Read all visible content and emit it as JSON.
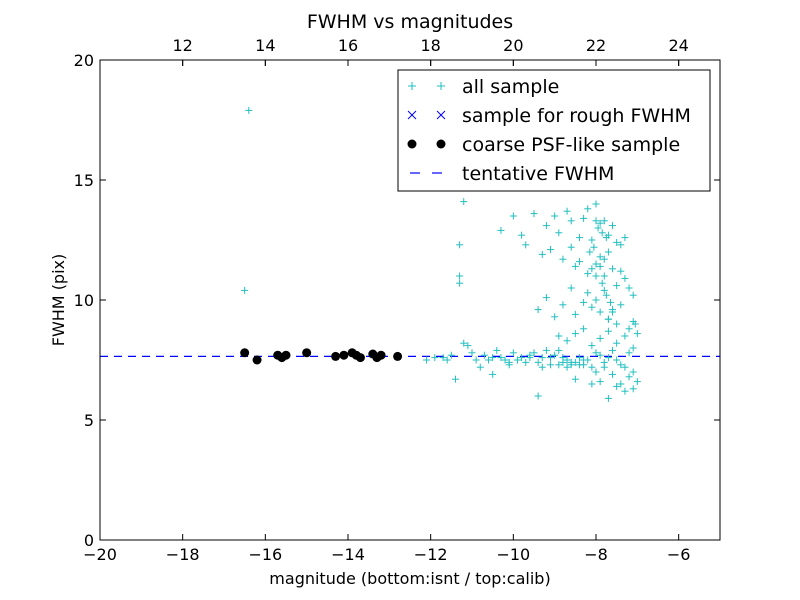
{
  "chart_data": {
    "type": "scatter",
    "title": "FWHM vs magnitudes",
    "xlabel": "magnitude (bottom:isnt / top:calib)",
    "ylabel": "FWHM (pix)",
    "xlim": [
      -20,
      -5
    ],
    "ylim": [
      0,
      20
    ],
    "x_ticks": [
      -20,
      -18,
      -16,
      -14,
      -12,
      -10,
      -8,
      -6
    ],
    "x_tick_labels": [
      "−20",
      "−18",
      "−16",
      "−14",
      "−12",
      "−10",
      "−8",
      "−6"
    ],
    "y_ticks": [
      0,
      5,
      10,
      15,
      20
    ],
    "y_tick_labels": [
      "0",
      "5",
      "10",
      "15",
      "20"
    ],
    "top_axis": {
      "offset": 30.0,
      "ticks": [
        12,
        14,
        16,
        18,
        20,
        22,
        24
      ],
      "tick_labels": [
        "12",
        "14",
        "16",
        "18",
        "20",
        "22",
        "24"
      ]
    },
    "grid": false,
    "legend_position": "top-right",
    "colors": {
      "all_sample": "#22bfbf",
      "rough_sample": "#0000ff",
      "coarse_sample": "#000000",
      "tentative_line": "#0000ff"
    },
    "series": [
      {
        "name": "all sample",
        "marker": "plus",
        "x": [
          -16.4,
          -16.5,
          -11.2,
          -11.3,
          -11.3,
          -11.3,
          -11.2,
          -10.8,
          -10.6,
          -10.5,
          -10.1,
          -10.0,
          -9.9,
          -9.8,
          -9.6,
          -9.4,
          -9.3,
          -9.1,
          -8.8,
          -8.9,
          -8.6,
          -8.4,
          -8.5,
          -8.3,
          -8.1,
          -8.0,
          -7.9,
          -7.8,
          -7.7,
          -7.6,
          -7.5,
          -7.4,
          -7.3,
          -7.2,
          -7.1,
          -7.0,
          -11.7,
          -11.5,
          -11.0,
          -10.5,
          -10.2,
          -9.7,
          -9.2,
          -8.7,
          -12.1,
          -11.9,
          -11.6,
          -11.4,
          -11.1,
          -10.9,
          -10.7,
          -10.4,
          -10.3,
          -10.1,
          -9.9,
          -9.6,
          -9.5,
          -9.4,
          -9.3,
          -9.1,
          -9.0,
          -8.9,
          -8.8,
          -8.7,
          -8.6,
          -8.5,
          -8.4,
          -8.3,
          -8.2,
          -8.1,
          -8.0,
          -7.9,
          -7.8,
          -7.7,
          -7.6,
          -7.5,
          -7.4,
          -7.3,
          -7.2,
          -7.1,
          -10.0,
          -9.8,
          -9.5,
          -9.2,
          -9.0,
          -8.9,
          -8.7,
          -8.6,
          -8.4,
          -8.3,
          -8.2,
          -8.1,
          -8.0,
          -7.9,
          -7.8,
          -7.7,
          -7.6,
          -7.5,
          -7.4,
          -7.3,
          -10.3,
          -9.7,
          -9.3,
          -9.1,
          -8.8,
          -8.6,
          -8.5,
          -8.4,
          -8.2,
          -8.1,
          -8.0,
          -7.9,
          -7.8,
          -7.7,
          -7.6,
          -7.5,
          -7.4,
          -7.3,
          -7.2,
          -7.1,
          -9.4,
          -9.2,
          -9.0,
          -8.8,
          -8.6,
          -8.5,
          -8.3,
          -8.2,
          -8.1,
          -8.0,
          -7.9,
          -7.8,
          -7.7,
          -7.6,
          -7.5,
          -7.4,
          -7.2,
          -7.1,
          -7.0,
          -7.05,
          -8.9,
          -8.7,
          -8.5,
          -8.3,
          -8.1,
          -7.9,
          -7.7,
          -7.5,
          -7.3,
          -7.1,
          -8.0,
          -7.95,
          -7.85,
          -7.75,
          -8.05,
          -8.15,
          -7.8,
          -7.9,
          -8.0,
          -7.85,
          -7.75,
          -7.65,
          -7.6,
          -7.7
        ],
        "y": [
          17.9,
          10.4,
          14.1,
          12.3,
          11.0,
          10.7,
          8.2,
          7.2,
          7.5,
          6.9,
          7.3,
          7.8,
          7.5,
          7.6,
          7.6,
          6.0,
          7.2,
          7.6,
          7.6,
          7.3,
          7.4,
          7.3,
          6.7,
          7.5,
          6.5,
          7.0,
          6.6,
          7.2,
          5.9,
          6.9,
          6.4,
          6.5,
          6.2,
          6.8,
          6.3,
          6.6,
          7.6,
          7.7,
          7.8,
          7.6,
          7.5,
          7.4,
          7.9,
          7.5,
          7.5,
          7.6,
          7.5,
          6.7,
          8.1,
          7.5,
          7.7,
          7.9,
          7.6,
          7.4,
          7.5,
          7.7,
          7.8,
          7.4,
          7.6,
          7.3,
          7.7,
          7.9,
          7.4,
          7.2,
          7.3,
          7.4,
          7.6,
          7.3,
          7.5,
          7.2,
          7.8,
          7.7,
          7.4,
          7.6,
          7.9,
          7.5,
          7.3,
          7.2,
          7.8,
          7.0,
          13.5,
          12.7,
          13.6,
          13.1,
          13.5,
          12.8,
          13.7,
          13.3,
          12.6,
          13.4,
          13.8,
          12.5,
          14.0,
          13.2,
          13.3,
          12.7,
          13.1,
          12.4,
          12.3,
          12.6,
          12.9,
          12.3,
          11.9,
          12.1,
          11.7,
          12.2,
          11.4,
          11.6,
          11.1,
          11.3,
          11.5,
          11.8,
          11.0,
          12.0,
          11.3,
          10.6,
          11.2,
          10.9,
          10.5,
          10.2,
          9.6,
          10.1,
          9.3,
          9.8,
          10.5,
          9.4,
          9.9,
          10.3,
          9.7,
          10.0,
          9.5,
          10.4,
          9.2,
          9.6,
          9.0,
          9.8,
          8.8,
          9.1,
          8.6,
          9.0,
          8.5,
          8.3,
          8.6,
          8.8,
          8.1,
          8.4,
          8.7,
          8.2,
          8.5,
          8.0,
          13.3,
          13.0,
          12.8,
          12.6,
          12.2,
          12.0,
          11.7,
          11.4,
          11.0,
          10.7,
          10.2,
          9.9,
          9.5,
          9.2
        ]
      },
      {
        "name": "sample for rough FWHM",
        "marker": "x",
        "x": [],
        "y": []
      },
      {
        "name": "coarse PSF-like sample",
        "marker": "circle",
        "x": [
          -16.5,
          -16.2,
          -15.7,
          -15.6,
          -15.5,
          -15.0,
          -14.3,
          -14.1,
          -13.9,
          -13.8,
          -13.7,
          -13.4,
          -13.3,
          -13.2,
          -12.8
        ],
        "y": [
          7.8,
          7.5,
          7.7,
          7.6,
          7.7,
          7.8,
          7.65,
          7.7,
          7.8,
          7.7,
          7.6,
          7.75,
          7.6,
          7.7,
          7.65
        ]
      }
    ],
    "reference_lines": [
      {
        "name": "tentative FWHM",
        "orientation": "horizontal",
        "y": 7.65,
        "style": "dashed"
      }
    ]
  }
}
